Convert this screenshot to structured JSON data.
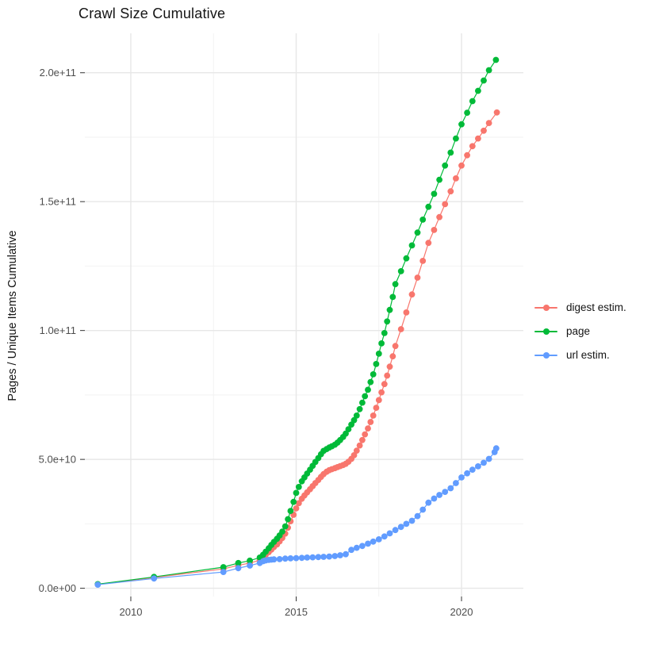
{
  "figure": {
    "title": "Crawl Size Cumulative",
    "y_axis_title": "Pages / Unique Items Cumulative"
  },
  "chart_data": {
    "type": "scatter",
    "title": "Crawl Size Cumulative",
    "xlabel": "",
    "ylabel": "Pages / Unique Items Cumulative",
    "grid": true,
    "legend_position": "right",
    "xlim": [
      2008.61,
      2021.87
    ],
    "ylim": [
      -3200000000.0,
      215300000000.0
    ],
    "x_ticks": {
      "values": [
        2010,
        2015,
        2020
      ],
      "labels": [
        "2010",
        "2015",
        "2020"
      ],
      "minor": [
        2012.5,
        2017.5
      ]
    },
    "y_ticks": {
      "values": [
        0,
        50000000000.0,
        100000000000.0,
        150000000000.0,
        200000000000.0
      ],
      "labels": [
        "0.0e+00",
        "5.0e+10",
        "1.0e+11",
        "1.5e+11",
        "2.0e+11"
      ],
      "minor": [
        25000000000.0,
        75000000000.0,
        125000000000.0,
        175000000000.0
      ]
    },
    "series": [
      {
        "name": "digest estim.",
        "color": "#F8766D",
        "points": [
          [
            2009.0,
            1500000000.0
          ],
          [
            2010.7,
            4200000000.0
          ],
          [
            2012.8,
            7500000000.0
          ],
          [
            2013.25,
            8900000000.0
          ],
          [
            2013.6,
            9800000000.0
          ],
          [
            2013.9,
            10900000000.0
          ],
          [
            2014.0,
            11900000000.0
          ],
          [
            2014.08,
            13000000000.0
          ],
          [
            2014.17,
            14000000000.0
          ],
          [
            2014.25,
            15000000000.0
          ],
          [
            2014.33,
            16000000000.0
          ],
          [
            2014.42,
            17000000000.0
          ],
          [
            2014.5,
            18200000000.0
          ],
          [
            2014.58,
            19500000000.0
          ],
          [
            2014.67,
            21200000000.0
          ],
          [
            2014.75,
            23500000000.0
          ],
          [
            2014.83,
            26000000000.0
          ],
          [
            2014.92,
            28500000000.0
          ],
          [
            2015.0,
            31000000000.0
          ],
          [
            2015.08,
            33000000000.0
          ],
          [
            2015.17,
            34700000000.0
          ],
          [
            2015.25,
            36000000000.0
          ],
          [
            2015.33,
            37200000000.0
          ],
          [
            2015.42,
            38400000000.0
          ],
          [
            2015.5,
            39600000000.0
          ],
          [
            2015.58,
            40800000000.0
          ],
          [
            2015.67,
            42000000000.0
          ],
          [
            2015.75,
            43200000000.0
          ],
          [
            2015.83,
            44300000000.0
          ],
          [
            2015.92,
            45200000000.0
          ],
          [
            2016.0,
            45800000000.0
          ],
          [
            2016.08,
            46200000000.0
          ],
          [
            2016.17,
            46600000000.0
          ],
          [
            2016.25,
            47000000000.0
          ],
          [
            2016.33,
            47400000000.0
          ],
          [
            2016.42,
            47800000000.0
          ],
          [
            2016.5,
            48300000000.0
          ],
          [
            2016.58,
            49100000000.0
          ],
          [
            2016.67,
            50200000000.0
          ],
          [
            2016.75,
            51600000000.0
          ],
          [
            2016.83,
            53400000000.0
          ],
          [
            2016.92,
            55400000000.0
          ],
          [
            2017.0,
            57500000000.0
          ],
          [
            2017.08,
            59700000000.0
          ],
          [
            2017.17,
            62000000000.0
          ],
          [
            2017.25,
            64500000000.0
          ],
          [
            2017.33,
            67000000000.0
          ],
          [
            2017.42,
            70000000000.0
          ],
          [
            2017.5,
            73000000000.0
          ],
          [
            2017.58,
            76000000000.0
          ],
          [
            2017.67,
            79200000000.0
          ],
          [
            2017.75,
            82500000000.0
          ],
          [
            2017.83,
            86000000000.0
          ],
          [
            2017.92,
            90000000000.0
          ],
          [
            2018.0,
            94000000000.0
          ],
          [
            2018.17,
            100500000000.0
          ],
          [
            2018.33,
            107000000000.0
          ],
          [
            2018.5,
            114000000000.0
          ],
          [
            2018.67,
            120500000000.0
          ],
          [
            2018.83,
            127000000000.0
          ],
          [
            2019.0,
            134000000000.0
          ],
          [
            2019.17,
            139000000000.0
          ],
          [
            2019.33,
            144000000000.0
          ],
          [
            2019.5,
            149000000000.0
          ],
          [
            2019.67,
            154000000000.0
          ],
          [
            2019.83,
            159000000000.0
          ],
          [
            2020.0,
            164000000000.0
          ],
          [
            2020.17,
            168000000000.0
          ],
          [
            2020.33,
            171500000000.0
          ],
          [
            2020.5,
            174500000000.0
          ],
          [
            2020.67,
            177500000000.0
          ],
          [
            2020.83,
            180500000000.0
          ],
          [
            2021.07,
            184600000000.0
          ]
        ]
      },
      {
        "name": "page",
        "color": "#00BA38",
        "points": [
          [
            2009.0,
            1600000000.0
          ],
          [
            2010.7,
            4400000000.0
          ],
          [
            2012.8,
            8200000000.0
          ],
          [
            2013.25,
            9800000000.0
          ],
          [
            2013.6,
            10700000000.0
          ],
          [
            2013.9,
            11900000000.0
          ],
          [
            2014.0,
            13000000000.0
          ],
          [
            2014.08,
            14200000000.0
          ],
          [
            2014.17,
            15500000000.0
          ],
          [
            2014.25,
            16800000000.0
          ],
          [
            2014.33,
            18000000000.0
          ],
          [
            2014.42,
            19200000000.0
          ],
          [
            2014.5,
            20500000000.0
          ],
          [
            2014.58,
            22000000000.0
          ],
          [
            2014.67,
            24000000000.0
          ],
          [
            2014.75,
            26800000000.0
          ],
          [
            2014.83,
            30000000000.0
          ],
          [
            2014.92,
            33500000000.0
          ],
          [
            2015.0,
            37000000000.0
          ],
          [
            2015.08,
            39300000000.0
          ],
          [
            2015.17,
            41500000000.0
          ],
          [
            2015.25,
            43000000000.0
          ],
          [
            2015.33,
            44500000000.0
          ],
          [
            2015.42,
            46000000000.0
          ],
          [
            2015.5,
            47500000000.0
          ],
          [
            2015.58,
            49000000000.0
          ],
          [
            2015.67,
            50500000000.0
          ],
          [
            2015.75,
            52000000000.0
          ],
          [
            2015.83,
            53300000000.0
          ],
          [
            2015.92,
            54000000000.0
          ],
          [
            2016.0,
            54600000000.0
          ],
          [
            2016.08,
            55100000000.0
          ],
          [
            2016.17,
            55700000000.0
          ],
          [
            2016.25,
            56500000000.0
          ],
          [
            2016.33,
            57500000000.0
          ],
          [
            2016.42,
            58700000000.0
          ],
          [
            2016.5,
            60000000000.0
          ],
          [
            2016.58,
            61700000000.0
          ],
          [
            2016.67,
            63500000000.0
          ],
          [
            2016.75,
            65200000000.0
          ],
          [
            2016.83,
            67000000000.0
          ],
          [
            2016.92,
            69500000000.0
          ],
          [
            2017.0,
            72000000000.0
          ],
          [
            2017.08,
            74500000000.0
          ],
          [
            2017.17,
            77000000000.0
          ],
          [
            2017.25,
            80000000000.0
          ],
          [
            2017.33,
            83000000000.0
          ],
          [
            2017.42,
            87000000000.0
          ],
          [
            2017.5,
            91000000000.0
          ],
          [
            2017.58,
            95000000000.0
          ],
          [
            2017.67,
            99000000000.0
          ],
          [
            2017.75,
            103500000000.0
          ],
          [
            2017.83,
            108000000000.0
          ],
          [
            2017.92,
            113000000000.0
          ],
          [
            2018.0,
            118000000000.0
          ],
          [
            2018.17,
            123000000000.0
          ],
          [
            2018.33,
            128000000000.0
          ],
          [
            2018.5,
            133000000000.0
          ],
          [
            2018.67,
            138000000000.0
          ],
          [
            2018.83,
            143000000000.0
          ],
          [
            2019.0,
            148000000000.0
          ],
          [
            2019.17,
            153000000000.0
          ],
          [
            2019.33,
            158500000000.0
          ],
          [
            2019.5,
            164000000000.0
          ],
          [
            2019.67,
            169000000000.0
          ],
          [
            2019.83,
            174500000000.0
          ],
          [
            2020.0,
            180000000000.0
          ],
          [
            2020.17,
            184500000000.0
          ],
          [
            2020.33,
            189000000000.0
          ],
          [
            2020.5,
            193000000000.0
          ],
          [
            2020.67,
            197000000000.0
          ],
          [
            2020.83,
            201000000000.0
          ],
          [
            2021.04,
            205000000000.0
          ]
        ]
      },
      {
        "name": "url estim.",
        "color": "#619CFF",
        "points": [
          [
            2009.0,
            1400000000.0
          ],
          [
            2010.7,
            3800000000.0
          ],
          [
            2012.8,
            6300000000.0
          ],
          [
            2013.25,
            7800000000.0
          ],
          [
            2013.6,
            8800000000.0
          ],
          [
            2013.9,
            9800000000.0
          ],
          [
            2014.0,
            10500000000.0
          ],
          [
            2014.08,
            10800000000.0
          ],
          [
            2014.17,
            11000000000.0
          ],
          [
            2014.25,
            11100000000.0
          ],
          [
            2014.33,
            11200000000.0
          ],
          [
            2014.5,
            11300000000.0
          ],
          [
            2014.67,
            11500000000.0
          ],
          [
            2014.83,
            11600000000.0
          ],
          [
            2015.0,
            11700000000.0
          ],
          [
            2015.17,
            11800000000.0
          ],
          [
            2015.33,
            11900000000.0
          ],
          [
            2015.5,
            12000000000.0
          ],
          [
            2015.67,
            12100000000.0
          ],
          [
            2015.83,
            12200000000.0
          ],
          [
            2016.0,
            12300000000.0
          ],
          [
            2016.17,
            12500000000.0
          ],
          [
            2016.33,
            12800000000.0
          ],
          [
            2016.5,
            13200000000.0
          ],
          [
            2016.67,
            14900000000.0
          ],
          [
            2016.83,
            15700000000.0
          ],
          [
            2017.0,
            16400000000.0
          ],
          [
            2017.17,
            17300000000.0
          ],
          [
            2017.33,
            18100000000.0
          ],
          [
            2017.5,
            19000000000.0
          ],
          [
            2017.67,
            20100000000.0
          ],
          [
            2017.83,
            21300000000.0
          ],
          [
            2018.0,
            22600000000.0
          ],
          [
            2018.17,
            23800000000.0
          ],
          [
            2018.33,
            25000000000.0
          ],
          [
            2018.5,
            26200000000.0
          ],
          [
            2018.67,
            28000000000.0
          ],
          [
            2018.83,
            30500000000.0
          ],
          [
            2019.0,
            33200000000.0
          ],
          [
            2019.17,
            34800000000.0
          ],
          [
            2019.33,
            36200000000.0
          ],
          [
            2019.5,
            37400000000.0
          ],
          [
            2019.67,
            38800000000.0
          ],
          [
            2019.83,
            40800000000.0
          ],
          [
            2020.0,
            43000000000.0
          ],
          [
            2020.17,
            44600000000.0
          ],
          [
            2020.33,
            46000000000.0
          ],
          [
            2020.5,
            47300000000.0
          ],
          [
            2020.67,
            48700000000.0
          ],
          [
            2020.83,
            50200000000.0
          ],
          [
            2021.0,
            52800000000.0
          ],
          [
            2021.05,
            54300000000.0
          ]
        ]
      }
    ]
  }
}
